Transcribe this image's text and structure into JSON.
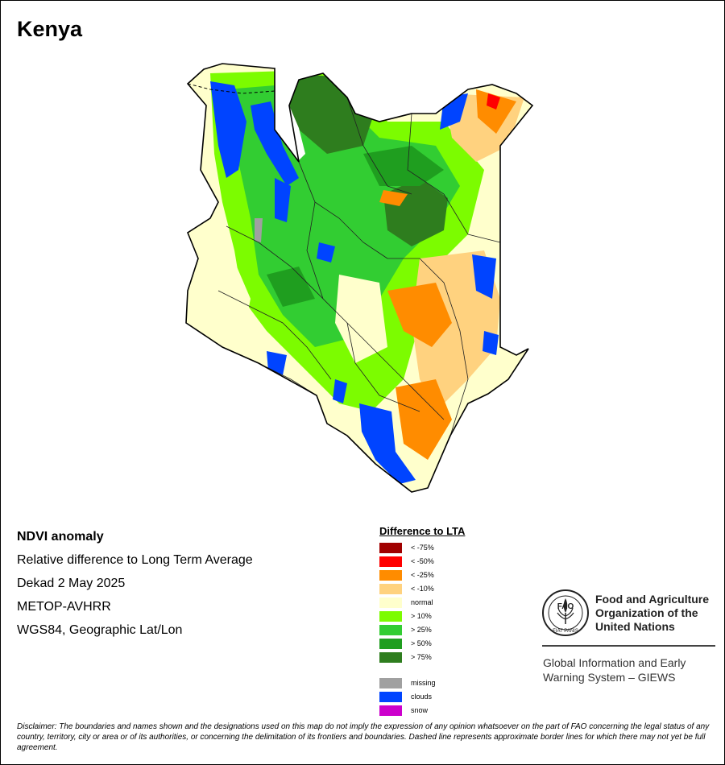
{
  "title": "Kenya",
  "info_lines": [
    "NDVI anomaly",
    "Relative difference to Long Term Average",
    "Dekad 2 May 2025",
    "METOP-AVHRR",
    "WGS84, Geographic Lat/Lon"
  ],
  "legend": {
    "title": "Difference to LTA",
    "classes": [
      {
        "label": "< -75%",
        "color": "#a00000"
      },
      {
        "label": "< -50%",
        "color": "#ff0000"
      },
      {
        "label": "< -25%",
        "color": "#ff8c00"
      },
      {
        "label": "< -10%",
        "color": "#ffd27f"
      },
      {
        "label": "normal",
        "color": "#ffffcc"
      },
      {
        "label": "> 10%",
        "color": "#7cfc00"
      },
      {
        "label": "> 25%",
        "color": "#32cd32"
      },
      {
        "label": "> 50%",
        "color": "#1f9e1f"
      },
      {
        "label": "> 75%",
        "color": "#2e7d1e"
      }
    ],
    "extra": [
      {
        "label": "missing",
        "color": "#a0a0a0"
      },
      {
        "label": "clouds",
        "color": "#0044ff"
      },
      {
        "label": "snow",
        "color": "#cc00cc"
      }
    ]
  },
  "org": {
    "name_lines": [
      "Food and Agriculture",
      "Organization of the",
      "United Nations"
    ],
    "system_lines": [
      "Global Information and Early",
      "Warning System – GIEWS"
    ],
    "logo_text": "FAO",
    "logo_motto": "FIAT PANIS"
  },
  "disclaimer": "Disclaimer: The boundaries and names shown and the designations used on this map do not imply the expression of any opinion whatsoever on the part of FAO concerning the legal status of any country, territory, city or area or of its authorities, or concerning the delimitation of its frontiers and boundaries. Dashed line represents approximate border lines for which there may not yet be full agreement."
}
